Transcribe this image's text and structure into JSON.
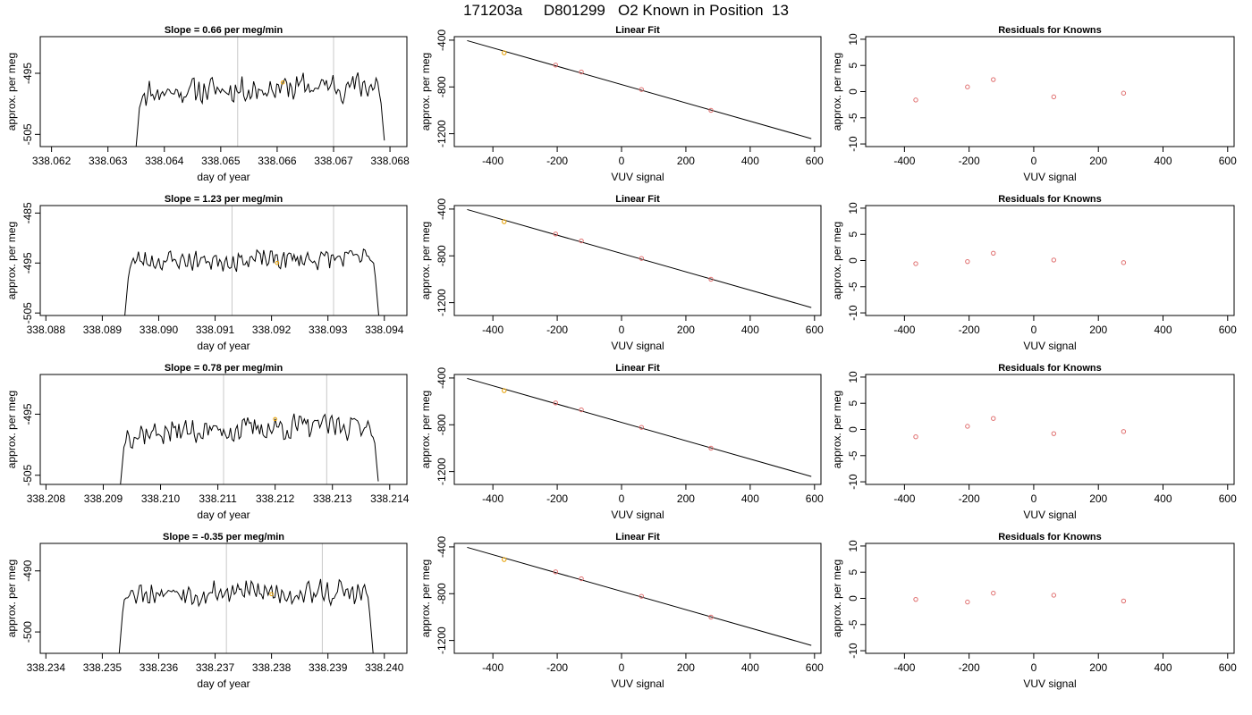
{
  "title": "171203a     D801299   O2 Known in Position  13",
  "colors": {
    "point": "#e07070",
    "highlight": "#e8a000",
    "gridline": "#c8c8c8",
    "line": "#000000"
  },
  "chart_data": [
    {
      "row": 1,
      "type": "line",
      "title": "Slope =  0.66  per meg/min",
      "xlabel": "day of year",
      "ylabel": "approx. per meg",
      "xlim": [
        338.0618,
        338.0683
      ],
      "ylim": [
        -507.0,
        -489.0
      ],
      "xticks": [
        "338.062",
        "338.063",
        "338.064",
        "338.065",
        "338.066",
        "338.067",
        "338.068"
      ],
      "yticks": [
        -505,
        -495
      ],
      "vlines": [
        338.0653,
        338.067
      ],
      "marker": {
        "x": 338.0661,
        "y": -496.5
      },
      "series": {
        "x0": 338.0635,
        "x1": 338.0679,
        "n": 150,
        "start": -507.0,
        "end": -506.0,
        "base": -497.5,
        "trend": 1.3,
        "noise": 1.6,
        "seed": 11
      }
    },
    {
      "row": 1,
      "type": "scatter",
      "title": "Linear Fit",
      "xlabel": "VUV signal",
      "ylabel": "approx. per meg",
      "xlim": [
        -520,
        620
      ],
      "ylim": [
        -1310,
        -370
      ],
      "xticks": [
        -400,
        -200,
        0,
        200,
        400,
        600
      ],
      "yticks": [
        -400,
        -800,
        -1200
      ],
      "fit": {
        "x1": -480,
        "y1": -404,
        "x2": 590,
        "y2": -1242
      },
      "points": [
        [
          -365,
          -508
        ],
        [
          -205,
          -613
        ],
        [
          -125,
          -672
        ],
        [
          62,
          -822
        ],
        [
          278,
          -1000
        ]
      ],
      "highlight_index": 0
    },
    {
      "row": 1,
      "type": "scatter",
      "title": "Residuals for Knowns",
      "xlabel": "VUV signal",
      "ylabel": "approx. per meg",
      "xlim": [
        -520,
        620
      ],
      "ylim": [
        -10.5,
        10.5
      ],
      "xticks": [
        -400,
        -200,
        0,
        200,
        400,
        600
      ],
      "yticks": [
        -10,
        -5,
        0,
        5,
        10
      ],
      "points": [
        [
          -365,
          -1.6
        ],
        [
          -205,
          0.9
        ],
        [
          -125,
          2.3
        ],
        [
          62,
          -1.0
        ],
        [
          278,
          -0.3
        ]
      ]
    },
    {
      "row": 2,
      "type": "line",
      "title": "Slope =  1.23  per meg/min",
      "xlabel": "day of year",
      "ylabel": "approx. per meg",
      "xlim": [
        338.0879,
        338.0944
      ],
      "ylim": [
        -505.5,
        -483.5
      ],
      "xticks": [
        "338.088",
        "338.089",
        "338.090",
        "338.091",
        "338.092",
        "338.093",
        "338.094"
      ],
      "yticks": [
        -505,
        -495,
        -485
      ],
      "vlines": [
        338.0913,
        338.0931
      ],
      "marker": {
        "x": 338.0921,
        "y": -495.0
      },
      "series": {
        "x0": 338.0894,
        "x1": 338.0939,
        "n": 150,
        "start": -505.5,
        "end": -505.5,
        "base": -494.3,
        "trend": 0.6,
        "noise": 1.5,
        "seed": 23
      }
    },
    {
      "row": 2,
      "type": "scatter",
      "title": "Linear Fit",
      "xlabel": "VUV signal",
      "ylabel": "approx. per meg",
      "xlim": [
        -520,
        620
      ],
      "ylim": [
        -1310,
        -370
      ],
      "xticks": [
        -400,
        -200,
        0,
        200,
        400,
        600
      ],
      "yticks": [
        -400,
        -800,
        -1200
      ],
      "fit": {
        "x1": -480,
        "y1": -404,
        "x2": 590,
        "y2": -1242
      },
      "points": [
        [
          -365,
          -508
        ],
        [
          -205,
          -613
        ],
        [
          -125,
          -672
        ],
        [
          62,
          -822
        ],
        [
          278,
          -1000
        ]
      ],
      "highlight_index": 0
    },
    {
      "row": 2,
      "type": "scatter",
      "title": "Residuals for Knowns",
      "xlabel": "VUV signal",
      "ylabel": "approx. per meg",
      "xlim": [
        -520,
        620
      ],
      "ylim": [
        -10.5,
        10.5
      ],
      "xticks": [
        -400,
        -200,
        0,
        200,
        400,
        600
      ],
      "yticks": [
        -10,
        -5,
        0,
        5,
        10
      ],
      "points": [
        [
          -365,
          -0.6
        ],
        [
          -205,
          -0.2
        ],
        [
          -125,
          1.4
        ],
        [
          62,
          0.1
        ],
        [
          278,
          -0.4
        ]
      ]
    },
    {
      "row": 3,
      "type": "line",
      "title": "Slope =  0.78  per meg/min",
      "xlabel": "day of year",
      "ylabel": "approx. per meg",
      "xlim": [
        338.2079,
        338.2143
      ],
      "ylim": [
        -506.5,
        -488.5
      ],
      "xticks": [
        "338.208",
        "338.209",
        "338.210",
        "338.211",
        "338.212",
        "338.213",
        "338.214"
      ],
      "yticks": [
        -505,
        -495
      ],
      "vlines": [
        338.2111,
        338.2129
      ],
      "marker": {
        "x": 338.212,
        "y": -495.8
      },
      "series": {
        "x0": 338.2093,
        "x1": 338.2138,
        "n": 150,
        "start": -506.5,
        "end": -506.0,
        "base": -497.4,
        "trend": 1.6,
        "noise": 1.5,
        "seed": 37
      }
    },
    {
      "row": 3,
      "type": "scatter",
      "title": "Linear Fit",
      "xlabel": "VUV signal",
      "ylabel": "approx. per meg",
      "xlim": [
        -520,
        620
      ],
      "ylim": [
        -1310,
        -370
      ],
      "xticks": [
        -400,
        -200,
        0,
        200,
        400,
        600
      ],
      "yticks": [
        -400,
        -800,
        -1200
      ],
      "fit": {
        "x1": -480,
        "y1": -404,
        "x2": 590,
        "y2": -1242
      },
      "points": [
        [
          -365,
          -508
        ],
        [
          -205,
          -613
        ],
        [
          -125,
          -672
        ],
        [
          62,
          -822
        ],
        [
          278,
          -1000
        ]
      ],
      "highlight_index": 0
    },
    {
      "row": 3,
      "type": "scatter",
      "title": "Residuals for Knowns",
      "xlabel": "VUV signal",
      "ylabel": "approx. per meg",
      "xlim": [
        -520,
        620
      ],
      "ylim": [
        -10.5,
        10.5
      ],
      "xticks": [
        -400,
        -200,
        0,
        200,
        400,
        600
      ],
      "yticks": [
        -10,
        -5,
        0,
        5,
        10
      ],
      "points": [
        [
          -365,
          -1.4
        ],
        [
          -205,
          0.6
        ],
        [
          -125,
          2.1
        ],
        [
          62,
          -0.8
        ],
        [
          278,
          -0.4
        ]
      ]
    },
    {
      "row": 4,
      "type": "line",
      "title": "Slope =  -0.35  per meg/min",
      "xlabel": "day of year",
      "ylabel": "approx. per meg",
      "xlim": [
        338.2339,
        338.2404
      ],
      "ylim": [
        -503.5,
        -485.5
      ],
      "xticks": [
        "338.234",
        "338.235",
        "338.236",
        "338.237",
        "338.238",
        "338.239",
        "338.240"
      ],
      "yticks": [
        -500,
        -490
      ],
      "vlines": [
        338.2372,
        338.2389
      ],
      "marker": {
        "x": 338.238,
        "y": -493.8
      },
      "series": {
        "x0": 338.2353,
        "x1": 338.2398,
        "n": 150,
        "start": -503.5,
        "end": -503.5,
        "base": -493.5,
        "trend": -0.4,
        "noise": 1.5,
        "seed": 53
      }
    },
    {
      "row": 4,
      "type": "scatter",
      "title": "Linear Fit",
      "xlabel": "VUV signal",
      "ylabel": "approx. per meg",
      "xlim": [
        -520,
        620
      ],
      "ylim": [
        -1310,
        -370
      ],
      "xticks": [
        -400,
        -200,
        0,
        200,
        400,
        600
      ],
      "yticks": [
        -400,
        -800,
        -1200
      ],
      "fit": {
        "x1": -480,
        "y1": -404,
        "x2": 590,
        "y2": -1242
      },
      "points": [
        [
          -365,
          -508
        ],
        [
          -205,
          -613
        ],
        [
          -125,
          -672
        ],
        [
          62,
          -822
        ],
        [
          278,
          -1000
        ]
      ],
      "highlight_index": 0
    },
    {
      "row": 4,
      "type": "scatter",
      "title": "Residuals for Knowns",
      "xlabel": "VUV signal",
      "ylabel": "approx. per meg",
      "xlim": [
        -520,
        620
      ],
      "ylim": [
        -10.5,
        10.5
      ],
      "xticks": [
        -400,
        -200,
        0,
        200,
        400,
        600
      ],
      "yticks": [
        -10,
        -5,
        0,
        5,
        10
      ],
      "points": [
        [
          -365,
          -0.2
        ],
        [
          -205,
          -0.7
        ],
        [
          -125,
          1.0
        ],
        [
          62,
          0.6
        ],
        [
          278,
          -0.5
        ]
      ]
    }
  ]
}
